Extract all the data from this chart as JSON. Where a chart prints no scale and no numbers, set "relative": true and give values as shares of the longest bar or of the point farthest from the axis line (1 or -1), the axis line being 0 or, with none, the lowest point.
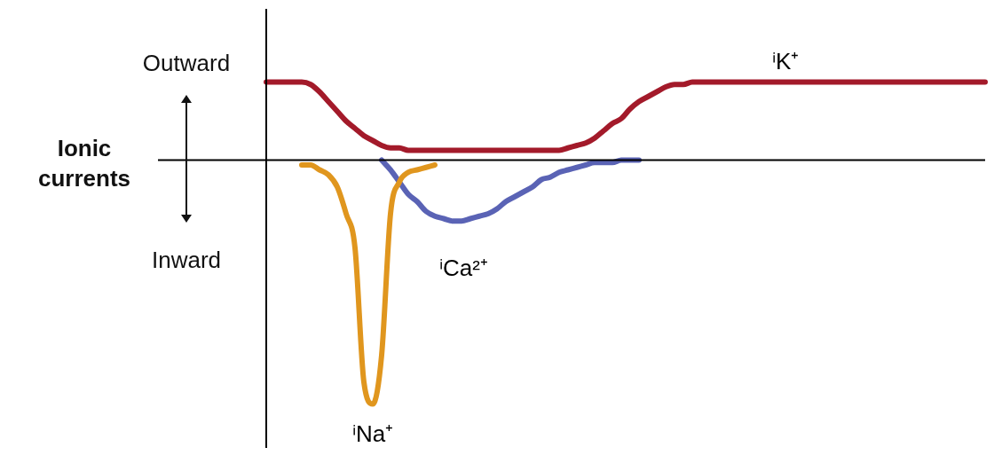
{
  "chart_data": {
    "type": "line",
    "relative": true,
    "annotations": [
      "Outward",
      "Ionic currents",
      "Inward"
    ],
    "legend": false,
    "marker": "none",
    "line_style": "solid",
    "categories": [
      null,
      null,
      null,
      null,
      null,
      null,
      null,
      null,
      null,
      null,
      null,
      null,
      null,
      null,
      null,
      null,
      null,
      null,
      null,
      null,
      null,
      null,
      null,
      null,
      null,
      null,
      null,
      null,
      null,
      null,
      null,
      null,
      null,
      null,
      null,
      null,
      null,
      null,
      null,
      null,
      null,
      null,
      null,
      null,
      null,
      null,
      null,
      null,
      null,
      null,
      null,
      null,
      null,
      null,
      null,
      null,
      null,
      null,
      null,
      null,
      null,
      null,
      null,
      null,
      null,
      null,
      null,
      null,
      null,
      null,
      null,
      null,
      null,
      null,
      null,
      null,
      null,
      null,
      null,
      null,
      null,
      null
    ],
    "series": [
      {
        "name": "ⁱK⁺",
        "color": "#a31a2a",
        "values": [
          0.32,
          0.32,
          0.32,
          0.32,
          0.32,
          0.31,
          0.28,
          0.24,
          0.2,
          0.16,
          0.13,
          0.1,
          0.08,
          0.06,
          0.05,
          0.05,
          0.04,
          0.04,
          0.04,
          0.04,
          0.04,
          0.04,
          0.04,
          0.04,
          0.04,
          0.04,
          0.04,
          0.04,
          0.04,
          0.04,
          0.04,
          0.04,
          0.04,
          0.04,
          0.05,
          0.06,
          0.07,
          0.09,
          0.12,
          0.15,
          0.17,
          0.21,
          0.24,
          0.26,
          0.28,
          0.3,
          0.31,
          0.31,
          0.32,
          0.32,
          0.32,
          0.32,
          0.32,
          0.32,
          0.32,
          0.32,
          0.32,
          0.32,
          0.32,
          0.32,
          0.32,
          0.32,
          0.32,
          0.32,
          0.32,
          0.32,
          0.32,
          0.32,
          0.32,
          0.32,
          0.32,
          0.32,
          0.32,
          0.32,
          0.32,
          0.32,
          0.32,
          0.32,
          0.32,
          0.32,
          0.32,
          0.32
        ]
      },
      {
        "name": "ⁱNa⁺",
        "color": "#e0961e",
        "values": [
          null,
          null,
          null,
          null,
          -0.02,
          -0.02,
          -0.04,
          -0.06,
          -0.11,
          -0.22,
          -0.36,
          -0.91,
          -1,
          -0.8,
          -0.22,
          -0.09,
          -0.05,
          -0.04,
          -0.03,
          -0.02,
          null,
          null,
          null,
          null,
          null,
          null,
          null,
          null,
          null,
          null,
          null,
          null,
          null,
          null,
          null,
          null,
          null,
          null,
          null,
          null,
          null,
          null,
          null,
          null,
          null,
          null,
          null,
          null,
          null,
          null,
          null,
          null,
          null,
          null,
          null,
          null,
          null,
          null,
          null,
          null,
          null,
          null,
          null,
          null,
          null,
          null,
          null,
          null,
          null,
          null,
          null,
          null,
          null,
          null,
          null,
          null,
          null,
          null,
          null,
          null,
          null,
          null
        ]
      },
      {
        "name": "ⁱCa²⁺",
        "color": "#5a63b5",
        "values": [
          null,
          null,
          null,
          null,
          null,
          null,
          null,
          null,
          null,
          null,
          null,
          null,
          null,
          0,
          -0.04,
          -0.09,
          -0.14,
          -0.17,
          -0.21,
          -0.23,
          -0.24,
          -0.25,
          -0.25,
          -0.24,
          -0.23,
          -0.22,
          -0.2,
          -0.17,
          -0.15,
          -0.13,
          -0.11,
          -0.08,
          -0.07,
          -0.05,
          -0.04,
          -0.03,
          -0.02,
          -0.01,
          -0.01,
          -0.01,
          0,
          0,
          0,
          null,
          null,
          null,
          null,
          null,
          null,
          null,
          null,
          null,
          null,
          null,
          null,
          null,
          null,
          null,
          null,
          null,
          null,
          null,
          null,
          null,
          null,
          null,
          null,
          null,
          null,
          null,
          null,
          null,
          null,
          null,
          null,
          null,
          null,
          null,
          null,
          null,
          null,
          null
        ]
      }
    ]
  }
}
